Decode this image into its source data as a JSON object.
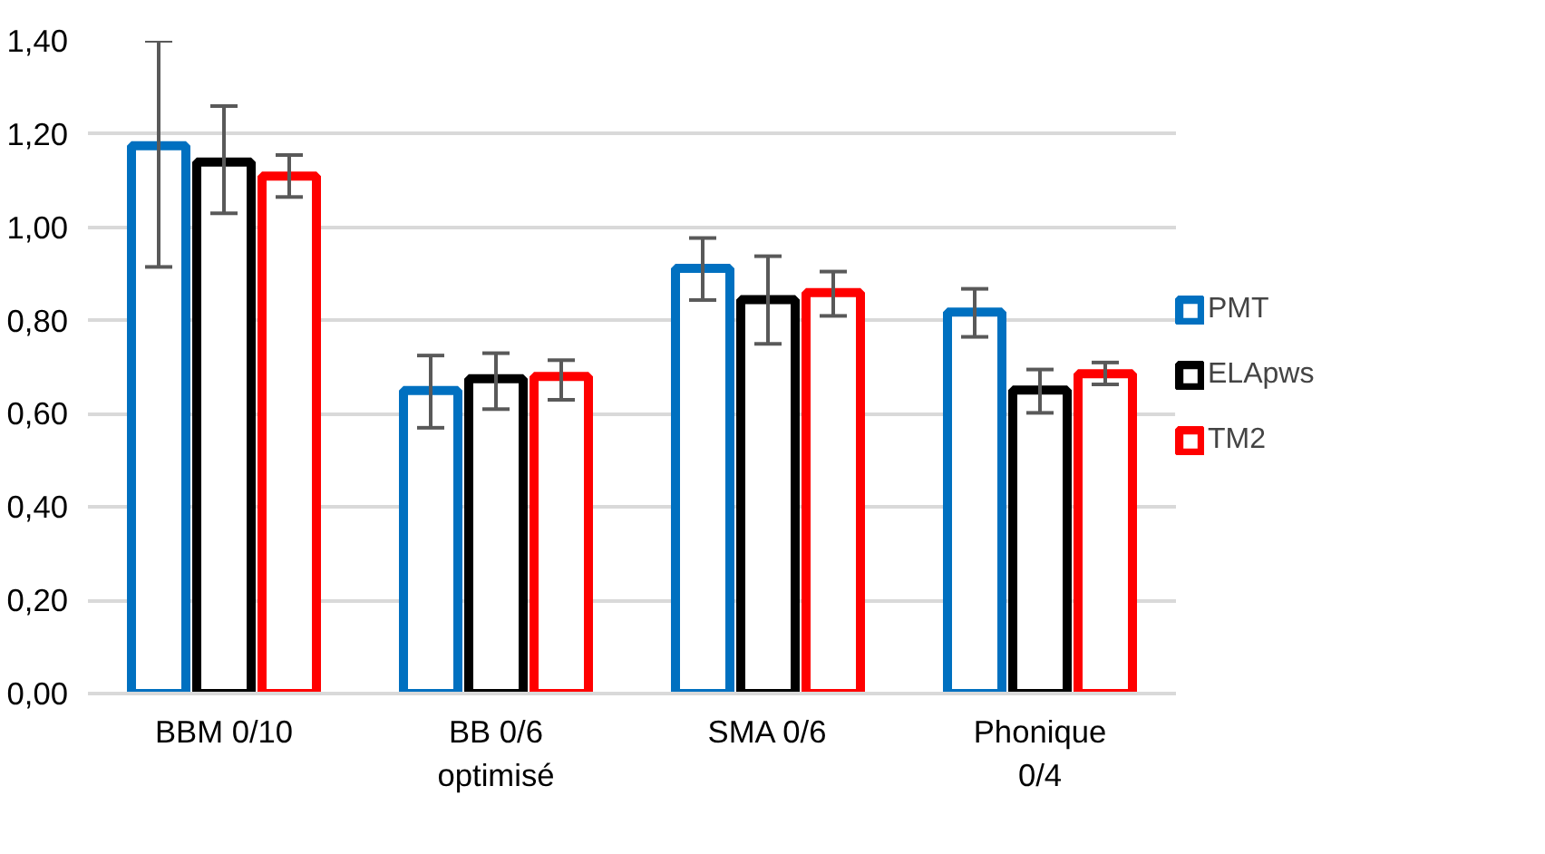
{
  "chart_data": {
    "type": "bar",
    "categories": [
      "BBM 0/10",
      "BB 0/6\noptimisé",
      "SMA 0/6",
      "Phonique\n0/4"
    ],
    "series": [
      {
        "name": "PMT",
        "color": "#0070c0",
        "values": [
          1.175,
          0.65,
          0.912,
          0.818
        ],
        "errors": [
          [
            0.915,
            1.4
          ],
          [
            0.57,
            0.725
          ],
          [
            0.844,
            0.977
          ],
          [
            0.765,
            0.868
          ]
        ]
      },
      {
        "name": "ELApws",
        "color": "#000000",
        "values": [
          1.14,
          0.675,
          0.845,
          0.651
        ],
        "errors": [
          [
            1.03,
            1.26
          ],
          [
            0.61,
            0.73
          ],
          [
            0.75,
            0.938
          ],
          [
            0.602,
            0.695
          ]
        ]
      },
      {
        "name": "TM2",
        "color": "#ff0000",
        "values": [
          1.11,
          0.68,
          0.86,
          0.686
        ],
        "errors": [
          [
            1.065,
            1.155
          ],
          [
            0.63,
            0.715
          ],
          [
            0.81,
            0.905
          ],
          [
            0.663,
            0.71
          ]
        ]
      }
    ],
    "ylim": [
      0,
      1.4
    ],
    "yticks": [
      {
        "value": 0,
        "label": "0,00"
      },
      {
        "value": 0.2,
        "label": "0,20"
      },
      {
        "value": 0.4,
        "label": "0,40"
      },
      {
        "value": 0.6,
        "label": "0,60"
      },
      {
        "value": 0.8,
        "label": "0,80"
      },
      {
        "value": 1.0,
        "label": "1,00"
      },
      {
        "value": 1.2,
        "label": "1,20"
      },
      {
        "value": 1.4,
        "label": "1,40"
      }
    ],
    "grid": "y",
    "legend": "right"
  }
}
